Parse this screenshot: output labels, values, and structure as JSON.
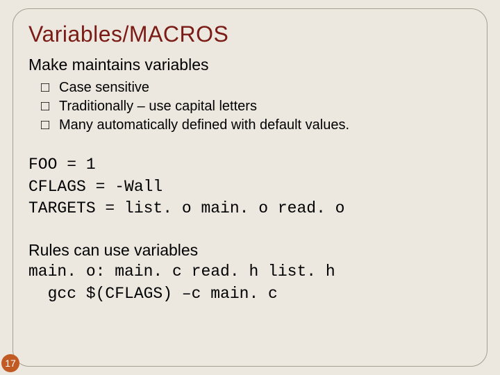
{
  "slide": {
    "title": "Variables/MACROS",
    "subtitle": "Make maintains variables",
    "bullets": [
      "Case sensitive",
      "Traditionally – use capital letters",
      "Many automatically defined with default values."
    ],
    "code_block1": "FOO = 1\nCFLAGS = -Wall\nTARGETS = list. o main. o read. o",
    "rules_label": "Rules can use variables",
    "code_block2": "main. o: main. c read. h list. h\n  gcc $(CFLAGS) –c main. c",
    "page_number": "17",
    "colors": {
      "background": "#ece8df",
      "frame_border": "#a59f92",
      "title_color": "#7b1b15",
      "text_color": "#000000",
      "badge_bg": "#c25a24",
      "badge_fg": "#ffffff"
    },
    "bullet_marker": "□"
  }
}
